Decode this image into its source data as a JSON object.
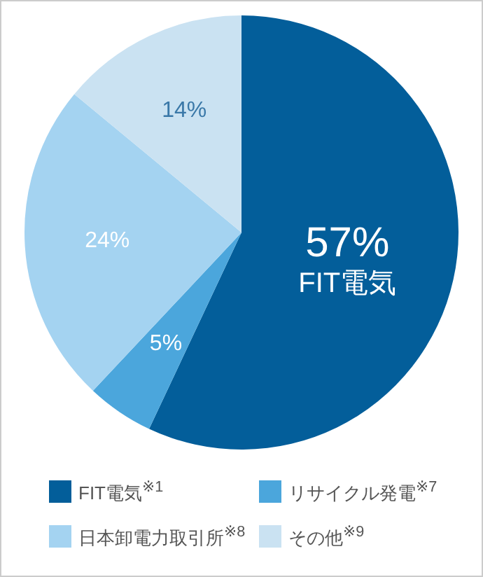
{
  "chart_data": {
    "type": "pie",
    "categories": [
      "FIT電気$^{※1}$",
      "リサイクル発電$^{※7}$",
      "日本卸電力取引所$^{※8}$",
      "その他$^{※9}$"
    ],
    "values": [
      57,
      5,
      24,
      14
    ],
    "colors": [
      "#035e9a",
      "#4ba6dc",
      "#a4d3f1",
      "#cae2f2"
    ],
    "value_labels": [
      "57%",
      "5%",
      "24%",
      "14%"
    ],
    "annotations": [
      "FIT電気"
    ],
    "legend": "bottom"
  }
}
